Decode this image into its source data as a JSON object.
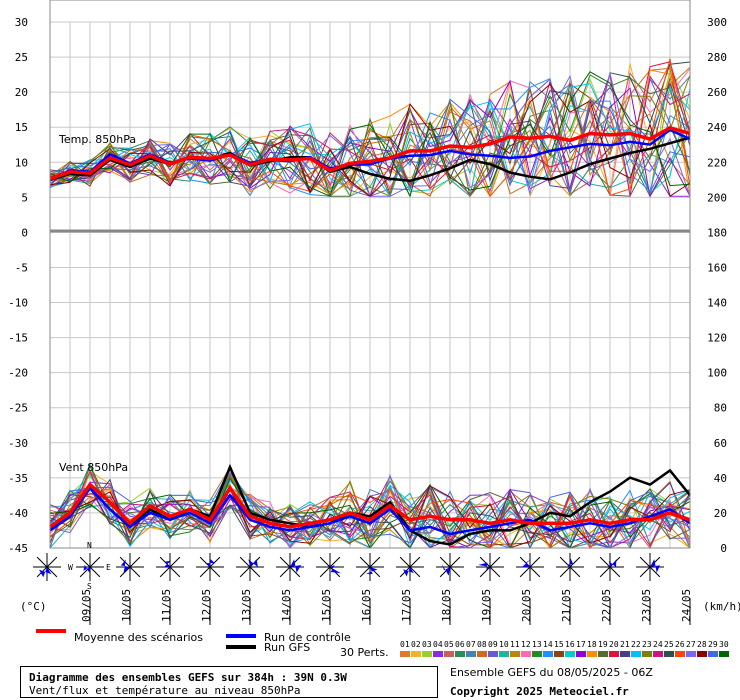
{
  "chart_data": {
    "type": "line",
    "dates": [
      "09/05",
      "10/05",
      "11/05",
      "12/05",
      "13/05",
      "14/05",
      "15/05",
      "16/05",
      "17/05",
      "18/05",
      "19/05",
      "20/05",
      "21/05",
      "22/05",
      "23/05",
      "24/05"
    ],
    "left_axis_unit": "(°C)",
    "right_axis_unit": "(km/h)",
    "left_ticks": [
      30,
      25,
      20,
      15,
      10,
      5,
      0,
      -5,
      -10,
      -15,
      -20,
      -25,
      -30,
      -35,
      -40,
      -45
    ],
    "right_ticks": [
      300,
      280,
      260,
      240,
      220,
      200,
      180,
      160,
      140,
      120,
      100,
      80,
      60,
      40,
      20,
      0
    ],
    "temp_panel": {
      "label": "Temp. 850hPa",
      "ylim": [
        0,
        30
      ],
      "mean": [
        7.5,
        8.5,
        8.3,
        10.5,
        9.5,
        10.8,
        9.6,
        10.6,
        10.4,
        10.9,
        9.5,
        10.3,
        10.2,
        10.4,
        8.7,
        9.7,
        10.0,
        10.5,
        11.5,
        11.5,
        12.2,
        12.0,
        12.5,
        13.5,
        13.3,
        13.6,
        13.0,
        14.0,
        13.8,
        14.0,
        13.2,
        14.8,
        14.0
      ],
      "control": [
        7.4,
        8.7,
        8.5,
        11.0,
        9.7,
        11.0,
        9.8,
        10.4,
        10.1,
        11.0,
        9.8,
        10.2,
        10.0,
        10.6,
        9.0,
        9.5,
        9.6,
        10.4,
        10.8,
        10.9,
        11.5,
        11.0,
        10.8,
        10.5,
        10.7,
        11.5,
        12.0,
        12.5,
        12.3,
        12.8,
        12.4,
        14.5,
        13.2
      ],
      "gfs": [
        7.3,
        8.2,
        8.0,
        10.2,
        9.2,
        10.4,
        9.6,
        10.6,
        10.3,
        11.2,
        9.4,
        10.0,
        10.6,
        10.6,
        8.5,
        9.2,
        8.2,
        7.5,
        7.2,
        8.0,
        9.0,
        10.2,
        9.6,
        8.4,
        7.8,
        7.4,
        8.4,
        9.6,
        10.4,
        11.2,
        11.8,
        12.6,
        13.4
      ]
    },
    "wind_panel": {
      "label": "Vent 850hPa",
      "ylim": [
        0,
        180
      ],
      "mean": [
        12,
        20,
        36,
        26,
        14,
        24,
        18,
        22,
        16,
        34,
        18,
        14,
        12,
        14,
        16,
        20,
        16,
        24,
        16,
        18,
        16,
        16,
        14,
        16,
        14,
        14,
        14,
        16,
        14,
        16,
        16,
        20,
        16
      ],
      "control": [
        10,
        18,
        34,
        22,
        12,
        20,
        16,
        20,
        14,
        30,
        16,
        12,
        10,
        12,
        14,
        18,
        14,
        22,
        10,
        12,
        8,
        10,
        12,
        14,
        16,
        10,
        12,
        14,
        12,
        14,
        18,
        22,
        14
      ],
      "gfs": [
        10,
        18,
        34,
        22,
        12,
        22,
        16,
        22,
        18,
        46,
        20,
        16,
        14,
        12,
        14,
        20,
        18,
        26,
        10,
        4,
        2,
        8,
        10,
        10,
        14,
        20,
        18,
        26,
        32,
        40,
        36,
        44,
        30
      ]
    },
    "legend": {
      "mean": "Moyenne des scénarios",
      "control": "Run de contrôle",
      "gfs": "Run GFS",
      "perts_label": "30 Perts.",
      "pert_ids": [
        "01",
        "02",
        "03",
        "04",
        "05",
        "06",
        "07",
        "08",
        "09",
        "10",
        "11",
        "12",
        "13",
        "14",
        "15",
        "16",
        "17",
        "18",
        "19",
        "20",
        "21",
        "22",
        "23",
        "24",
        "25",
        "26",
        "27",
        "28",
        "29",
        "30"
      ],
      "mean_color": "#ff0000",
      "control_color": "#0000ff",
      "gfs_color": "#000000",
      "pert_colors": [
        "#e07a2a",
        "#f0b428",
        "#9acd32",
        "#8a2be2",
        "#cd5c5c",
        "#2e8b57",
        "#4682b4",
        "#d2691e",
        "#6a5acd",
        "#20b2aa",
        "#b8860b",
        "#ff69b4",
        "#228b22",
        "#1e90ff",
        "#8b4513",
        "#00ced1",
        "#9400d3",
        "#ff8c00",
        "#556b2f",
        "#dc143c",
        "#483d8b",
        "#00bfff",
        "#808000",
        "#c71585",
        "#2f4f4f",
        "#ff4500",
        "#7b68ee",
        "#8b0000",
        "#4169e1",
        "#006400"
      ]
    },
    "wind_roses": {
      "count": 16
    }
  },
  "footer": {
    "title": "Diagramme des ensembles GEFS sur 384h : 39N 0.3W",
    "subtitle": "Vent/flux et température au niveau 850hPa",
    "run_info": "Ensemble GEFS du 08/05/2025 - 06Z",
    "copyright": "Copyright 2025 Meteociel.fr"
  },
  "compass": {
    "n": "N",
    "s": "S",
    "e": "E",
    "w": "W"
  }
}
